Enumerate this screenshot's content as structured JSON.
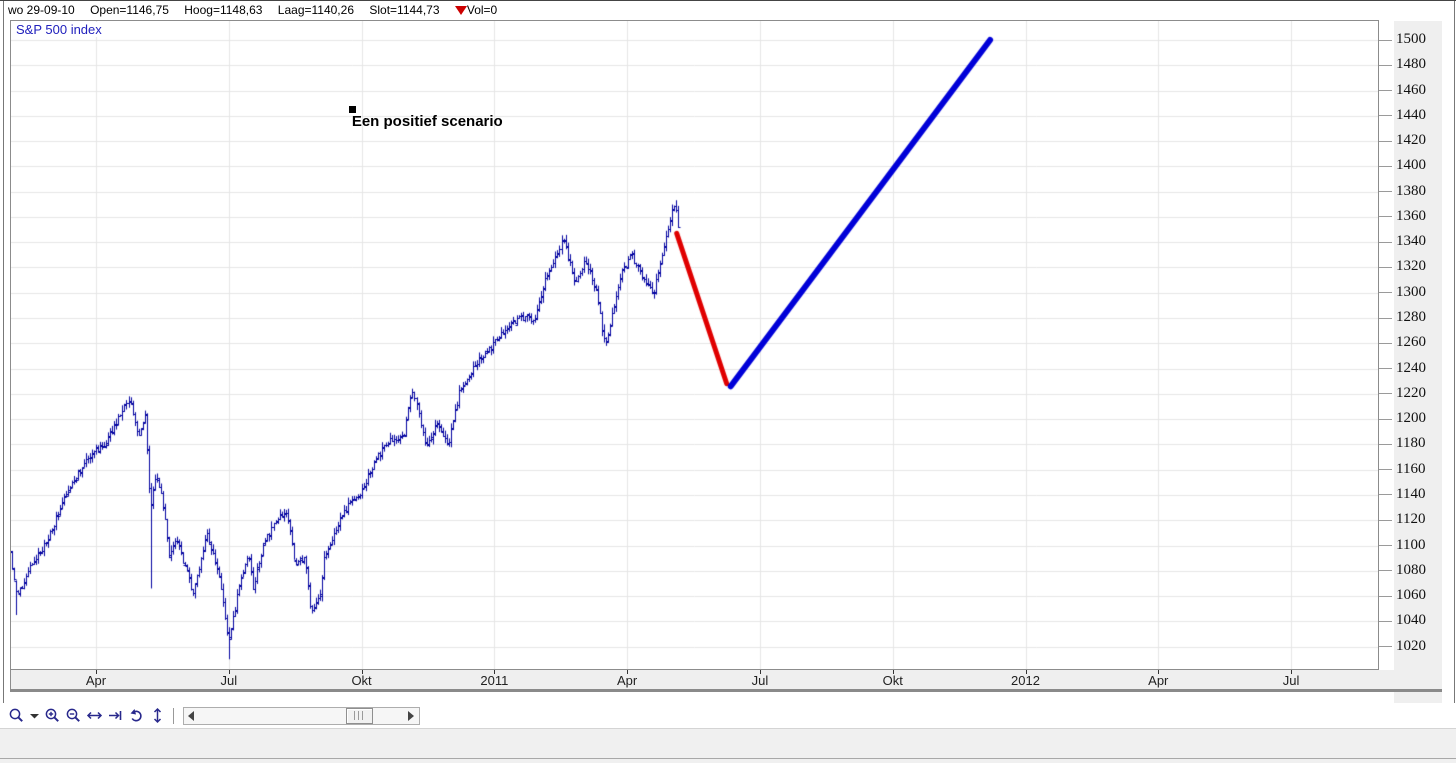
{
  "header": {
    "date": "wo 29-09-10",
    "open": "Open=1146,75",
    "high": "Hoog=1148,63",
    "low": "Laag=1140,26",
    "close": "Slot=1144,73",
    "volume": "Vol=0"
  },
  "chart": {
    "series_label": "S&P 500 index"
  },
  "chart_data": {
    "type": "ohlc",
    "title": "S&P 500 index",
    "x_unit": "months since 2010-01-01 (0 = Jan 2010)",
    "x_axis": {
      "grid": true,
      "labels": [
        {
          "pos": 3,
          "label": "Apr"
        },
        {
          "pos": 6,
          "label": "Jul"
        },
        {
          "pos": 9,
          "label": "Okt"
        },
        {
          "pos": 12,
          "label": "2011"
        },
        {
          "pos": 15,
          "label": "Apr"
        },
        {
          "pos": 18,
          "label": "Jul"
        },
        {
          "pos": 21,
          "label": "Okt"
        },
        {
          "pos": 24,
          "label": "2012"
        },
        {
          "pos": 27,
          "label": "Apr"
        },
        {
          "pos": 30,
          "label": "Jul"
        }
      ]
    },
    "y_axis": {
      "position": "right",
      "grid": true,
      "min": 1020,
      "max": 1500,
      "step": 20,
      "ticks": [
        1020,
        1040,
        1060,
        1080,
        1100,
        1120,
        1140,
        1160,
        1180,
        1200,
        1220,
        1240,
        1260,
        1280,
        1300,
        1320,
        1340,
        1360,
        1380,
        1400,
        1420,
        1440,
        1460,
        1480,
        1500
      ]
    },
    "bar_color": "#0202a0",
    "price_path": [
      [
        1.05,
        1095
      ],
      [
        1.2,
        1058
      ],
      [
        1.5,
        1082
      ],
      [
        1.9,
        1104
      ],
      [
        2.3,
        1140
      ],
      [
        2.8,
        1170
      ],
      [
        3.2,
        1180
      ],
      [
        3.5,
        1200
      ],
      [
        3.75,
        1217
      ],
      [
        3.95,
        1186
      ],
      [
        4.1,
        1203
      ],
      [
        4.22,
        1128
      ],
      [
        4.35,
        1158
      ],
      [
        4.5,
        1135
      ],
      [
        4.65,
        1090
      ],
      [
        4.8,
        1108
      ],
      [
        4.95,
        1089
      ],
      [
        5.2,
        1062
      ],
      [
        5.5,
        1110
      ],
      [
        5.8,
        1074
      ],
      [
        6.0,
        1023
      ],
      [
        6.25,
        1070
      ],
      [
        6.45,
        1095
      ],
      [
        6.55,
        1065
      ],
      [
        6.8,
        1102
      ],
      [
        7.1,
        1121
      ],
      [
        7.3,
        1127
      ],
      [
        7.5,
        1083
      ],
      [
        7.7,
        1092
      ],
      [
        7.85,
        1047
      ],
      [
        8.05,
        1060
      ],
      [
        8.15,
        1090
      ],
      [
        8.45,
        1116
      ],
      [
        8.75,
        1135
      ],
      [
        9.0,
        1142
      ],
      [
        9.35,
        1170
      ],
      [
        9.65,
        1183
      ],
      [
        9.95,
        1186
      ],
      [
        10.15,
        1224
      ],
      [
        10.45,
        1178
      ],
      [
        10.7,
        1197
      ],
      [
        10.95,
        1180
      ],
      [
        11.2,
        1221
      ],
      [
        11.55,
        1242
      ],
      [
        11.95,
        1258
      ],
      [
        12.35,
        1275
      ],
      [
        12.7,
        1282
      ],
      [
        12.9,
        1277
      ],
      [
        13.15,
        1310
      ],
      [
        13.55,
        1342
      ],
      [
        13.8,
        1308
      ],
      [
        14.05,
        1325
      ],
      [
        14.3,
        1300
      ],
      [
        14.5,
        1256
      ],
      [
        14.85,
        1315
      ],
      [
        15.1,
        1330
      ],
      [
        15.35,
        1312
      ],
      [
        15.6,
        1300
      ],
      [
        15.85,
        1340
      ],
      [
        16.0,
        1362
      ],
      [
        16.08,
        1369
      ],
      [
        16.2,
        1346
      ]
    ],
    "spikes": [
      {
        "pos": 1.2,
        "low": 1045
      },
      {
        "pos": 4.23,
        "low": 1066
      },
      {
        "pos": 6.0,
        "low": 1010
      }
    ],
    "scenario_lines": [
      {
        "name": "correction",
        "color": "#e00000",
        "width": 5,
        "from": {
          "pos": 16.12,
          "value": 1347
        },
        "to": {
          "pos": 17.25,
          "value": 1228
        }
      },
      {
        "name": "rally",
        "color": "#0000d8",
        "width": 6,
        "from": {
          "pos": 17.34,
          "value": 1226
        },
        "to": {
          "pos": 23.2,
          "value": 1500
        }
      }
    ],
    "annotation": {
      "text": "Een positief scenario",
      "pos": 8.78,
      "value": 1442
    }
  },
  "toolbar": {
    "icons": [
      "zoom-tool-icon",
      "zoom-dropdown-icon",
      "zoom-in-icon",
      "zoom-out-icon",
      "fit-horizontal-icon",
      "scroll-to-end-icon",
      "undo-zoom-icon",
      "fit-vertical-icon"
    ],
    "scrollbar": {
      "thumb_position_pct": 82
    }
  },
  "colors": {
    "bars": "#0202a0",
    "scenario_red": "#e00000",
    "scenario_blue": "#0000d8",
    "grid": "#e6e6e6",
    "axis_strip": "#efefef",
    "icon": "#28288c",
    "series_label": "#2121bd",
    "volume_triangle": "#cc0000"
  }
}
